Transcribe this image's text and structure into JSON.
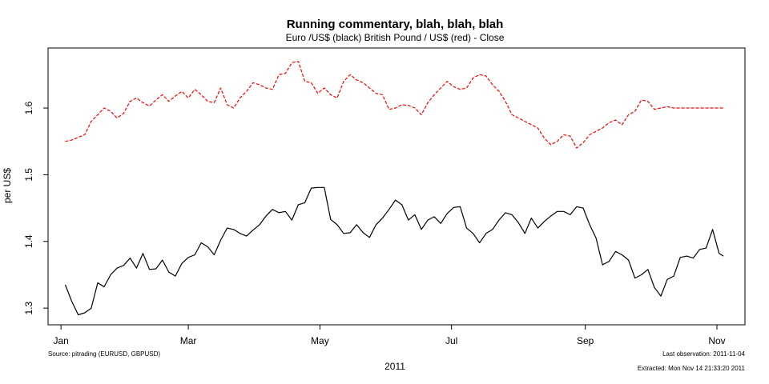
{
  "chart_data": {
    "type": "line",
    "title": "Running commentary, blah, blah, blah",
    "subtitle": "Euro /US$ (black) British Pound / US$ (red)  - Close",
    "xlabel": "2011",
    "ylabel": "per US$",
    "x_ticks": [
      {
        "label": "Jan",
        "day": 0
      },
      {
        "label": "Mar",
        "day": 59
      },
      {
        "label": "May",
        "day": 120
      },
      {
        "label": "Jul",
        "day": 181
      },
      {
        "label": "Sep",
        "day": 243
      },
      {
        "label": "Nov",
        "day": 304
      }
    ],
    "y_ticks": [
      1.3,
      1.4,
      1.5,
      1.6
    ],
    "xlim": [
      "2010-12-26",
      "2011-11-14"
    ],
    "ylim": [
      1.275,
      1.69
    ],
    "grid": false,
    "series": [
      {
        "color": "#000000",
        "dash": "solid",
        "x": [
          "2011-01-03",
          "2011-01-06",
          "2011-01-09",
          "2011-01-12",
          "2011-01-15",
          "2011-01-18",
          "2011-01-21",
          "2011-01-24",
          "2011-01-27",
          "2011-01-30",
          "2011-02-02",
          "2011-02-05",
          "2011-02-08",
          "2011-02-11",
          "2011-02-14",
          "2011-02-17",
          "2011-02-20",
          "2011-02-23",
          "2011-02-26",
          "2011-03-01",
          "2011-03-04",
          "2011-03-07",
          "2011-03-10",
          "2011-03-13",
          "2011-03-16",
          "2011-03-19",
          "2011-03-22",
          "2011-03-25",
          "2011-03-28",
          "2011-03-31",
          "2011-04-03",
          "2011-04-06",
          "2011-04-09",
          "2011-04-12",
          "2011-04-15",
          "2011-04-18",
          "2011-04-21",
          "2011-04-24",
          "2011-04-27",
          "2011-04-30",
          "2011-05-03",
          "2011-05-06",
          "2011-05-09",
          "2011-05-12",
          "2011-05-15",
          "2011-05-18",
          "2011-05-21",
          "2011-05-24",
          "2011-05-27",
          "2011-05-30",
          "2011-06-02",
          "2011-06-05",
          "2011-06-08",
          "2011-06-11",
          "2011-06-14",
          "2011-06-17",
          "2011-06-20",
          "2011-06-23",
          "2011-06-26",
          "2011-06-29",
          "2011-07-02",
          "2011-07-05",
          "2011-07-08",
          "2011-07-11",
          "2011-07-14",
          "2011-07-17",
          "2011-07-20",
          "2011-07-23",
          "2011-07-26",
          "2011-07-29",
          "2011-08-01",
          "2011-08-04",
          "2011-08-07",
          "2011-08-10",
          "2011-08-13",
          "2011-08-16",
          "2011-08-19",
          "2011-08-22",
          "2011-08-25",
          "2011-08-28",
          "2011-08-31",
          "2011-09-03",
          "2011-09-06",
          "2011-09-09",
          "2011-09-12",
          "2011-09-15",
          "2011-09-18",
          "2011-09-21",
          "2011-09-24",
          "2011-09-27",
          "2011-09-30",
          "2011-10-03",
          "2011-10-06",
          "2011-10-09",
          "2011-10-12",
          "2011-10-15",
          "2011-10-18",
          "2011-10-21",
          "2011-10-24",
          "2011-10-27",
          "2011-10-30",
          "2011-11-02",
          "2011-11-04"
        ],
        "values": [
          1.335,
          1.31,
          1.29,
          1.293,
          1.3,
          1.338,
          1.332,
          1.35,
          1.36,
          1.364,
          1.375,
          1.36,
          1.382,
          1.358,
          1.359,
          1.372,
          1.354,
          1.348,
          1.367,
          1.376,
          1.38,
          1.398,
          1.392,
          1.38,
          1.402,
          1.42,
          1.418,
          1.412,
          1.408,
          1.417,
          1.425,
          1.438,
          1.448,
          1.443,
          1.445,
          1.432,
          1.455,
          1.458,
          1.48,
          1.481,
          1.481,
          1.433,
          1.425,
          1.412,
          1.413,
          1.425,
          1.413,
          1.406,
          1.425,
          1.435,
          1.448,
          1.462,
          1.455,
          1.432,
          1.44,
          1.418,
          1.432,
          1.437,
          1.427,
          1.442,
          1.451,
          1.452,
          1.42,
          1.412,
          1.398,
          1.412,
          1.418,
          1.432,
          1.443,
          1.44,
          1.428,
          1.412,
          1.435,
          1.42,
          1.43,
          1.438,
          1.445,
          1.445,
          1.44,
          1.452,
          1.45,
          1.425,
          1.405,
          1.365,
          1.37,
          1.385,
          1.38,
          1.372,
          1.345,
          1.35,
          1.358,
          1.331,
          1.318,
          1.343,
          1.348,
          1.376,
          1.378,
          1.375,
          1.388,
          1.39,
          1.418,
          1.382,
          1.378
        ]
      },
      {
        "color": "#ff0000",
        "dash": "dashed",
        "x": [
          "2011-01-03",
          "2011-01-06",
          "2011-01-09",
          "2011-01-12",
          "2011-01-15",
          "2011-01-18",
          "2011-01-21",
          "2011-01-24",
          "2011-01-27",
          "2011-01-30",
          "2011-02-02",
          "2011-02-05",
          "2011-02-08",
          "2011-02-11",
          "2011-02-14",
          "2011-02-17",
          "2011-02-20",
          "2011-02-23",
          "2011-02-26",
          "2011-03-01",
          "2011-03-04",
          "2011-03-07",
          "2011-03-10",
          "2011-03-13",
          "2011-03-16",
          "2011-03-19",
          "2011-03-22",
          "2011-03-25",
          "2011-03-28",
          "2011-03-31",
          "2011-04-03",
          "2011-04-06",
          "2011-04-09",
          "2011-04-12",
          "2011-04-15",
          "2011-04-18",
          "2011-04-21",
          "2011-04-24",
          "2011-04-27",
          "2011-04-30",
          "2011-05-03",
          "2011-05-06",
          "2011-05-09",
          "2011-05-12",
          "2011-05-15",
          "2011-05-18",
          "2011-05-21",
          "2011-05-24",
          "2011-05-27",
          "2011-05-30",
          "2011-06-02",
          "2011-06-05",
          "2011-06-08",
          "2011-06-11",
          "2011-06-14",
          "2011-06-17",
          "2011-06-20",
          "2011-06-23",
          "2011-06-26",
          "2011-06-29",
          "2011-07-02",
          "2011-07-05",
          "2011-07-08",
          "2011-07-11",
          "2011-07-14",
          "2011-07-17",
          "2011-07-20",
          "2011-07-23",
          "2011-07-26",
          "2011-07-29",
          "2011-08-01",
          "2011-08-04",
          "2011-08-07",
          "2011-08-10",
          "2011-08-13",
          "2011-08-16",
          "2011-08-19",
          "2011-08-22",
          "2011-08-25",
          "2011-08-28",
          "2011-08-31",
          "2011-09-03",
          "2011-09-06",
          "2011-09-09",
          "2011-09-12",
          "2011-09-15",
          "2011-09-18",
          "2011-09-21",
          "2011-09-24",
          "2011-09-27",
          "2011-09-30",
          "2011-10-03",
          "2011-10-06",
          "2011-10-09",
          "2011-10-12",
          "2011-10-15",
          "2011-10-18",
          "2011-10-21",
          "2011-10-24",
          "2011-10-27",
          "2011-10-30",
          "2011-11-02",
          "2011-11-04"
        ],
        "values": [
          1.55,
          1.552,
          1.556,
          1.56,
          1.58,
          1.59,
          1.6,
          1.595,
          1.585,
          1.592,
          1.61,
          1.615,
          1.608,
          1.603,
          1.612,
          1.62,
          1.61,
          1.618,
          1.625,
          1.615,
          1.628,
          1.62,
          1.61,
          1.608,
          1.63,
          1.605,
          1.6,
          1.615,
          1.625,
          1.638,
          1.635,
          1.63,
          1.628,
          1.65,
          1.652,
          1.668,
          1.67,
          1.64,
          1.638,
          1.622,
          1.63,
          1.62,
          1.615,
          1.64,
          1.65,
          1.642,
          1.638,
          1.63,
          1.622,
          1.62,
          1.598,
          1.6,
          1.605,
          1.604,
          1.6,
          1.59,
          1.608,
          1.62,
          1.63,
          1.64,
          1.632,
          1.628,
          1.63,
          1.645,
          1.65,
          1.648,
          1.635,
          1.625,
          1.61,
          1.59,
          1.585,
          1.58,
          1.575,
          1.57,
          1.555,
          1.545,
          1.55,
          1.56,
          1.558,
          1.54,
          1.548,
          1.56,
          1.565,
          1.57,
          1.578,
          1.582,
          1.575,
          1.59,
          1.595,
          1.612,
          1.61,
          1.598,
          1.6,
          1.602,
          1.6,
          1.6,
          1.6,
          1.6,
          1.6,
          1.6,
          1.6,
          1.6,
          1.6
        ]
      }
    ],
    "notes": {
      "source": "Source: pitrading (EURUSD, GBPUSD)",
      "last_observation": "Last observation: 2011-11-04",
      "extracted": "Extracted: Mon Nov 14 21:33:20 2011"
    }
  }
}
